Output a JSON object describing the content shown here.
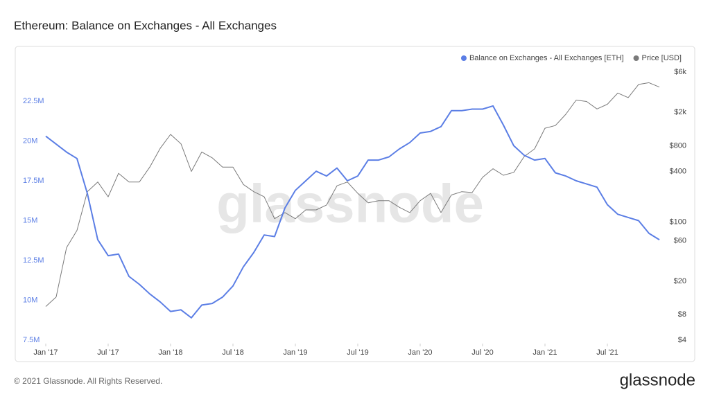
{
  "chart_data": {
    "type": "line",
    "title": "Ethereum: Balance on Exchanges - All Exchanges",
    "watermark": "glassnode",
    "x": [
      "2017-01",
      "2017-02",
      "2017-03",
      "2017-04",
      "2017-05",
      "2017-06",
      "2017-07",
      "2017-08",
      "2017-09",
      "2017-10",
      "2017-11",
      "2017-12",
      "2018-01",
      "2018-02",
      "2018-03",
      "2018-04",
      "2018-05",
      "2018-06",
      "2018-07",
      "2018-08",
      "2018-09",
      "2018-10",
      "2018-11",
      "2018-12",
      "2019-01",
      "2019-02",
      "2019-03",
      "2019-04",
      "2019-05",
      "2019-06",
      "2019-07",
      "2019-08",
      "2019-09",
      "2019-10",
      "2019-11",
      "2019-12",
      "2020-01",
      "2020-02",
      "2020-03",
      "2020-04",
      "2020-05",
      "2020-06",
      "2020-07",
      "2020-08",
      "2020-09",
      "2020-10",
      "2020-11",
      "2020-12",
      "2021-01",
      "2021-02",
      "2021-03",
      "2021-04",
      "2021-05",
      "2021-06",
      "2021-07",
      "2021-08",
      "2021-09",
      "2021-10",
      "2021-11",
      "2021-12"
    ],
    "xlim": [
      "2017-01",
      "2021-12"
    ],
    "xticks": [
      {
        "value": "2017-01",
        "label": "Jan '17"
      },
      {
        "value": "2017-07",
        "label": "Jul '17"
      },
      {
        "value": "2018-01",
        "label": "Jan '18"
      },
      {
        "value": "2018-07",
        "label": "Jul '18"
      },
      {
        "value": "2019-01",
        "label": "Jan '19"
      },
      {
        "value": "2019-07",
        "label": "Jul '19"
      },
      {
        "value": "2020-01",
        "label": "Jan '20"
      },
      {
        "value": "2020-07",
        "label": "Jul '20"
      },
      {
        "value": "2021-01",
        "label": "Jan '21"
      },
      {
        "value": "2021-07",
        "label": "Jul '21"
      }
    ],
    "ylim": [
      7500000,
      24500000
    ],
    "yticks": [
      {
        "value": 7500000,
        "label": "7.5M"
      },
      {
        "value": 10000000,
        "label": "10M"
      },
      {
        "value": 12500000,
        "label": "12.5M"
      },
      {
        "value": 15000000,
        "label": "15M"
      },
      {
        "value": 17500000,
        "label": "17.5M"
      },
      {
        "value": 20000000,
        "label": "20M"
      },
      {
        "value": 22500000,
        "label": "22.5M"
      }
    ],
    "y2lim": [
      4,
      6500
    ],
    "y2log": true,
    "y2ticks": [
      {
        "value": 4,
        "label": "$4"
      },
      {
        "value": 8,
        "label": "$8"
      },
      {
        "value": 20,
        "label": "$20"
      },
      {
        "value": 60,
        "label": "$60"
      },
      {
        "value": 100,
        "label": "$100"
      },
      {
        "value": 400,
        "label": "$400"
      },
      {
        "value": 800,
        "label": "$800"
      },
      {
        "value": 2000,
        "label": "$2k"
      },
      {
        "value": 6000,
        "label": "$6k"
      }
    ],
    "legend": "top-right",
    "series": [
      {
        "name": "Balance on Exchanges - All Exchanges [ETH]",
        "color": "#5b7ee5",
        "axis": "y",
        "values": [
          20300000,
          19800000,
          19300000,
          18900000,
          16700000,
          13800000,
          12800000,
          12900000,
          11500000,
          11000000,
          10400000,
          9900000,
          9300000,
          9400000,
          8900000,
          9700000,
          9800000,
          10200000,
          10900000,
          12100000,
          13000000,
          14100000,
          14000000,
          15800000,
          16900000,
          17500000,
          18100000,
          17800000,
          18300000,
          17500000,
          17800000,
          18800000,
          18800000,
          19000000,
          19500000,
          19900000,
          20500000,
          20600000,
          20900000,
          21900000,
          21900000,
          22000000,
          22000000,
          22200000,
          21000000,
          19700000,
          19100000,
          18800000,
          18900000,
          18000000,
          17800000,
          17500000,
          17300000,
          17100000,
          16000000,
          15400000,
          15200000,
          15000000,
          14200000,
          13800000
        ]
      },
      {
        "name": "Price [USD]",
        "color": "#7a7a7a",
        "axis": "y2",
        "values": [
          10,
          13,
          50,
          80,
          230,
          300,
          200,
          380,
          300,
          300,
          450,
          750,
          1100,
          850,
          400,
          680,
          580,
          450,
          450,
          280,
          230,
          200,
          110,
          130,
          110,
          140,
          140,
          160,
          270,
          300,
          220,
          170,
          180,
          180,
          150,
          130,
          180,
          220,
          130,
          210,
          230,
          225,
          340,
          430,
          360,
          390,
          600,
          740,
          1300,
          1400,
          1900,
          2800,
          2700,
          2200,
          2500,
          3400,
          3000,
          4300,
          4500,
          4000
        ]
      }
    ]
  },
  "footer": {
    "copyright": "© 2021 Glassnode. All Rights Reserved.",
    "logo": "glassnode"
  }
}
